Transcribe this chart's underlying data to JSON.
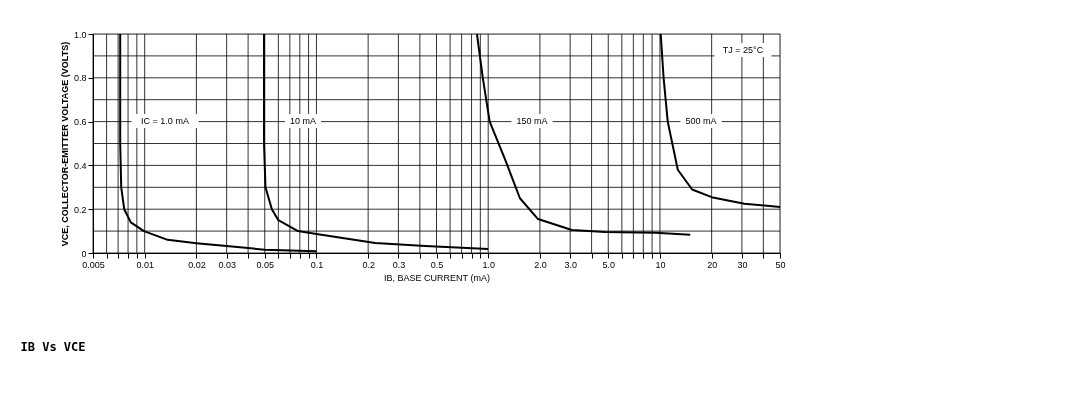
{
  "chart_data": {
    "type": "line",
    "title": "IB Vs VCE",
    "xlabel": "IB, BASE CURRENT (mA)",
    "ylabel": "VCE, COLLECTOR-EMITTER VOLTAGE (VOLTS)",
    "log": "x",
    "grid": true,
    "legend": false,
    "marker": "none",
    "line_style": "solid",
    "xlim": [
      0.005,
      50
    ],
    "ylim": [
      0,
      1
    ],
    "xticks": [
      0.005,
      {
        "value": 0.006,
        "label": null
      },
      {
        "value": 0.007,
        "label": null
      },
      {
        "value": 0.008,
        "label": null
      },
      {
        "value": 0.009,
        "label": null
      },
      0.01,
      0.02,
      0.03,
      {
        "value": 0.04,
        "label": null
      },
      0.05,
      {
        "value": 0.06,
        "label": null
      },
      {
        "value": 0.07,
        "label": null
      },
      {
        "value": 0.08,
        "label": null
      },
      {
        "value": 0.09,
        "label": null
      },
      0.1,
      0.2,
      0.3,
      {
        "value": 0.4,
        "label": null
      },
      0.5,
      {
        "value": 0.6,
        "label": null
      },
      {
        "value": 0.7,
        "label": null
      },
      {
        "value": 0.8,
        "label": null
      },
      {
        "value": 0.9,
        "label": null
      },
      {
        "value": 1,
        "label": "1.0"
      },
      {
        "value": 2,
        "label": "2.0"
      },
      {
        "value": 3,
        "label": "3.0"
      },
      {
        "value": 4,
        "label": null
      },
      {
        "value": 5,
        "label": "5.0"
      },
      {
        "value": 6,
        "label": null
      },
      {
        "value": 7,
        "label": null
      },
      {
        "value": 8,
        "label": null
      },
      {
        "value": 9,
        "label": null
      },
      10,
      20,
      30,
      {
        "value": 40,
        "label": null
      },
      50
    ],
    "yticks": [
      0,
      {
        "value": 0.1,
        "label": null
      },
      0.2,
      {
        "value": 0.3,
        "label": null
      },
      0.4,
      {
        "value": 0.5,
        "label": null
      },
      0.6,
      {
        "value": 0.7,
        "label": null
      },
      0.8,
      {
        "value": 0.9,
        "label": null
      },
      {
        "value": 1,
        "label": "1.0"
      }
    ],
    "series": [
      {
        "color": "#000000",
        "x": [
          0.0072,
          0.0072,
          0.0073,
          0.0076,
          0.0083,
          0.0099,
          0.0136,
          0.02,
          0.03,
          0.05,
          0.1
        ],
        "values": [
          1.0,
          0.5,
          0.3,
          0.2,
          0.14,
          0.1,
          0.06,
          0.045,
          0.032,
          0.015,
          0.008
        ]
      },
      {
        "color": "#000000",
        "x": [
          0.0495,
          0.0495,
          0.0505,
          0.055,
          0.06,
          0.078,
          0.1,
          0.22,
          0.43,
          1.0
        ],
        "values": [
          1.0,
          0.5,
          0.3,
          0.2,
          0.15,
          0.1,
          0.087,
          0.046,
          0.032,
          0.018
        ]
      },
      {
        "color": "#000000",
        "x": [
          0.86,
          0.93,
          1.02,
          1.25,
          1.53,
          1.95,
          3.07,
          4.8,
          9.4,
          15
        ],
        "values": [
          1.0,
          0.8,
          0.6,
          0.43,
          0.25,
          0.155,
          0.105,
          0.096,
          0.093,
          0.083
        ]
      },
      {
        "color": "#000000",
        "x": [
          10.1,
          10.5,
          11.1,
          12.7,
          15.4,
          20,
          31,
          50
        ],
        "values": [
          1.0,
          0.8,
          0.6,
          0.38,
          0.29,
          0.255,
          0.225,
          0.21
        ]
      }
    ],
    "annotations": [
      "IC = 1.0 mA",
      "10 mA",
      "150 mA",
      "500 mA",
      "TJ = 25°C"
    ]
  }
}
